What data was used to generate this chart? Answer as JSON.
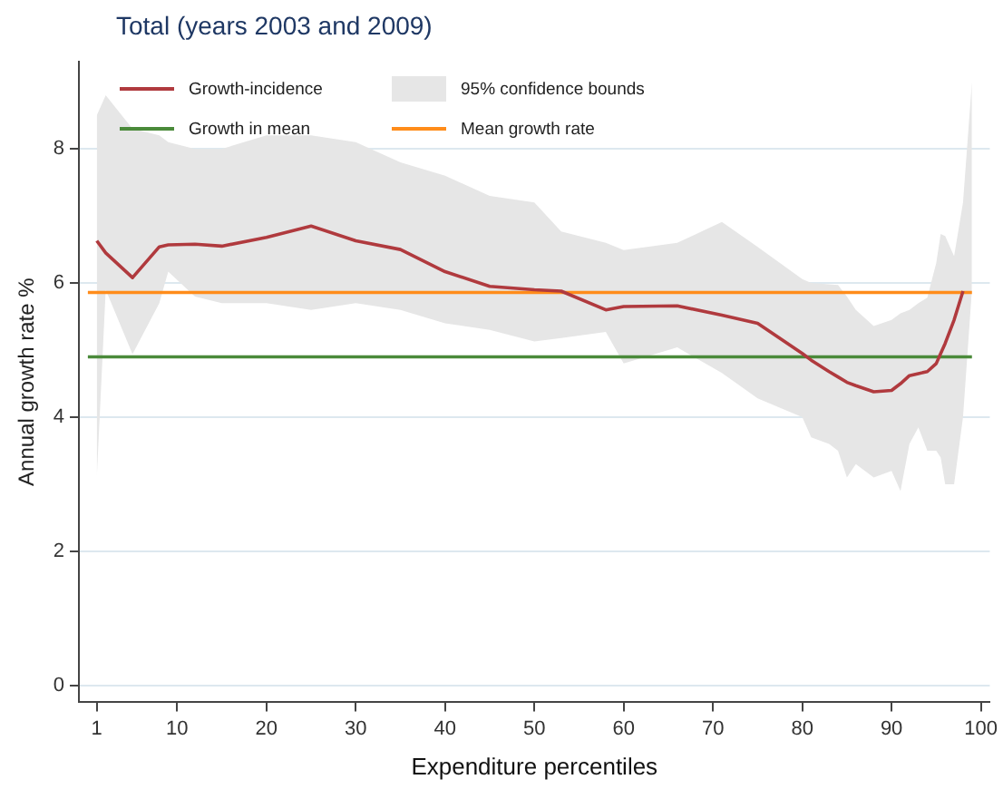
{
  "chart_data": {
    "type": "line",
    "title": "Total (years 2003 and 2009)",
    "xlabel": "Expenditure percentiles",
    "ylabel": "Annual growth rate %",
    "xlim": [
      -1,
      101
    ],
    "xticks": [
      1,
      10,
      20,
      30,
      40,
      50,
      60,
      70,
      80,
      90,
      100
    ],
    "ylim": [
      -0.25,
      9.3
    ],
    "yticks": [
      0,
      2,
      4,
      6,
      8
    ],
    "grid": "y",
    "legend": "top left",
    "marker": "none",
    "line_style": "solid",
    "annotations": [
      "95% confidence bounds"
    ],
    "series": [
      {
        "name": "Growth-incidence",
        "color": "#b03a3e",
        "x": [
          1,
          2,
          5,
          8,
          9,
          12,
          15,
          20,
          25,
          30,
          35,
          40,
          45,
          50,
          53,
          58,
          60,
          66,
          71,
          75,
          80,
          81,
          83,
          84,
          85,
          86,
          88,
          90,
          91,
          92,
          93,
          94,
          95,
          95.5,
          96,
          97,
          98,
          99
        ],
        "values": [
          6.63,
          6.45,
          6.08,
          6.54,
          6.57,
          6.58,
          6.55,
          6.68,
          6.85,
          6.63,
          6.5,
          6.17,
          5.95,
          5.9,
          5.88,
          5.6,
          5.65,
          5.66,
          5.52,
          5.4,
          4.95,
          4.85,
          4.68,
          4.6,
          4.52,
          4.47,
          4.38,
          4.4,
          4.5,
          4.62,
          4.65,
          4.68,
          4.8,
          4.95,
          5.1,
          5.45,
          5.88,
          null
        ],
        "lower": [
          3.1,
          5.9,
          4.94,
          5.7,
          6.17,
          5.8,
          5.7,
          5.7,
          5.6,
          5.7,
          5.6,
          5.4,
          5.3,
          5.13,
          5.18,
          5.27,
          4.8,
          5.04,
          4.66,
          4.28,
          4.0,
          3.7,
          3.6,
          3.5,
          3.1,
          3.3,
          3.1,
          3.2,
          2.9,
          3.6,
          3.85,
          3.5,
          3.5,
          3.4,
          3.0,
          3.0,
          4.0,
          5.9
        ],
        "upper": [
          8.5,
          8.8,
          8.3,
          8.2,
          8.1,
          8.0,
          8.0,
          8.2,
          8.2,
          8.1,
          7.8,
          7.6,
          7.3,
          7.2,
          6.77,
          6.6,
          6.49,
          6.6,
          6.91,
          6.54,
          6.06,
          6.0,
          5.98,
          5.97,
          5.8,
          5.6,
          5.36,
          5.45,
          5.55,
          5.6,
          5.7,
          5.78,
          6.3,
          6.73,
          6.7,
          6.4,
          7.2,
          9.0
        ]
      },
      {
        "name": "Growth in mean",
        "color": "#4a8a3a",
        "x": [
          0,
          99
        ],
        "values": [
          4.9,
          4.9
        ]
      },
      {
        "name": "Mean growth rate",
        "color": "#ff8c1a",
        "x": [
          0,
          99
        ],
        "values": [
          5.86,
          5.86
        ]
      }
    ]
  }
}
